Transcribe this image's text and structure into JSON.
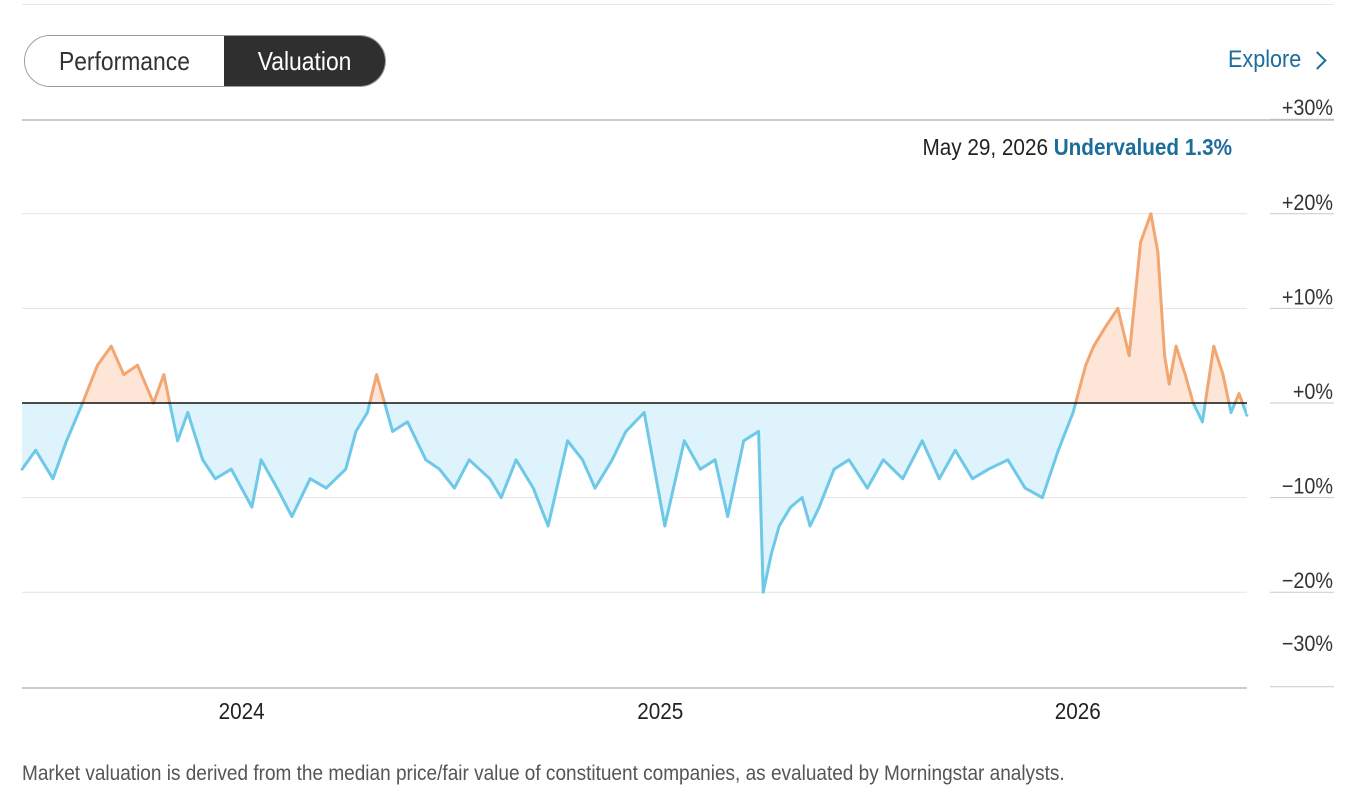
{
  "tabs": [
    {
      "label": "Performance",
      "active": false
    },
    {
      "label": "Valuation",
      "active": true
    }
  ],
  "explore": {
    "label": "Explore",
    "icon": "chevron-right-icon"
  },
  "tooltip": {
    "date": "May 29, 2026",
    "status": "Undervalued 1.3%"
  },
  "footnote": "Market valuation is derived from the median price/fair value of constituent companies, as evaluated by Morningstar analysts.",
  "colors": {
    "overvalued": "#f2a672",
    "overvalued_fill": "#fde6d7",
    "undervalued": "#6ec8e8",
    "undervalued_fill": "#def3fb",
    "status_text": "#1c6d9c",
    "active_tab": "#2f2f2f"
  },
  "chart_data": {
    "type": "area",
    "ylabels": [
      "+30%",
      "+20%",
      "+10%",
      "+0%",
      "−10%",
      "−20%",
      "−30%"
    ],
    "yticks": [
      30,
      20,
      10,
      0,
      -10,
      -20,
      -30
    ],
    "ylim": [
      -30,
      30
    ],
    "xlabels": [
      "2024",
      "2025",
      "2026"
    ],
    "xtick_years": [
      2024,
      2025,
      2026
    ],
    "xlim": [
      "2023-06-23",
      "2026-05-29"
    ],
    "baseline": 0,
    "x": [
      "2023-06-23",
      "2023-07-05",
      "2023-07-20",
      "2023-08-01",
      "2023-08-15",
      "2023-08-28",
      "2023-09-09",
      "2023-09-20",
      "2023-10-02",
      "2023-10-16",
      "2023-10-25",
      "2023-11-06",
      "2023-11-15",
      "2023-11-28",
      "2023-12-09",
      "2023-12-23",
      "2024-01-10",
      "2024-01-18",
      "2024-02-01",
      "2024-02-14",
      "2024-03-01",
      "2024-03-15",
      "2024-04-01",
      "2024-04-10",
      "2024-04-20",
      "2024-04-28",
      "2024-05-12",
      "2024-05-25",
      "2024-06-10",
      "2024-06-22",
      "2024-07-05",
      "2024-07-18",
      "2024-08-05",
      "2024-08-15",
      "2024-08-28",
      "2024-09-12",
      "2024-09-25",
      "2024-10-12",
      "2024-10-25",
      "2024-11-05",
      "2024-11-20",
      "2024-12-02",
      "2024-12-18",
      "2025-01-05",
      "2025-01-22",
      "2025-02-05",
      "2025-02-18",
      "2025-03-01",
      "2025-03-15",
      "2025-03-28",
      "2025-04-01",
      "2025-04-08",
      "2025-04-15",
      "2025-04-25",
      "2025-05-05",
      "2025-05-12",
      "2025-05-20",
      "2025-06-02",
      "2025-06-15",
      "2025-07-01",
      "2025-07-15",
      "2025-08-01",
      "2025-08-18",
      "2025-09-02",
      "2025-09-16",
      "2025-10-01",
      "2025-10-15",
      "2025-11-01",
      "2025-11-16",
      "2025-12-01",
      "2025-12-15",
      "2025-12-28",
      "2026-01-08",
      "2026-01-15",
      "2026-01-25",
      "2026-02-05",
      "2026-02-15",
      "2026-02-25",
      "2026-03-06",
      "2026-03-12",
      "2026-03-18",
      "2026-03-22",
      "2026-03-28",
      "2026-04-05",
      "2026-04-12",
      "2026-04-20",
      "2026-04-30",
      "2026-05-08",
      "2026-05-15",
      "2026-05-22",
      "2026-05-29"
    ],
    "values": [
      -7,
      -5,
      -8,
      -4,
      0,
      4,
      6,
      3,
      4,
      0,
      3,
      -4,
      -1,
      -6,
      -8,
      -7,
      -11,
      -6,
      -9,
      -12,
      -8,
      -9,
      -7,
      -3,
      -1,
      3,
      -3,
      -2,
      -6,
      -7,
      -9,
      -6,
      -8,
      -10,
      -6,
      -9,
      -13,
      -4,
      -6,
      -9,
      -6,
      -3,
      -1,
      -13,
      -4,
      -7,
      -6,
      -12,
      -4,
      -3,
      -20,
      -16,
      -13,
      -11,
      -10,
      -13,
      -11,
      -7,
      -6,
      -9,
      -6,
      -8,
      -4,
      -8,
      -5,
      -8,
      -7,
      -6,
      -9,
      -10,
      -5,
      -1,
      4,
      6,
      8,
      10,
      5,
      17,
      20,
      16,
      5,
      2,
      6,
      3,
      0,
      -2,
      6,
      3,
      -1,
      1,
      -1.3
    ]
  }
}
